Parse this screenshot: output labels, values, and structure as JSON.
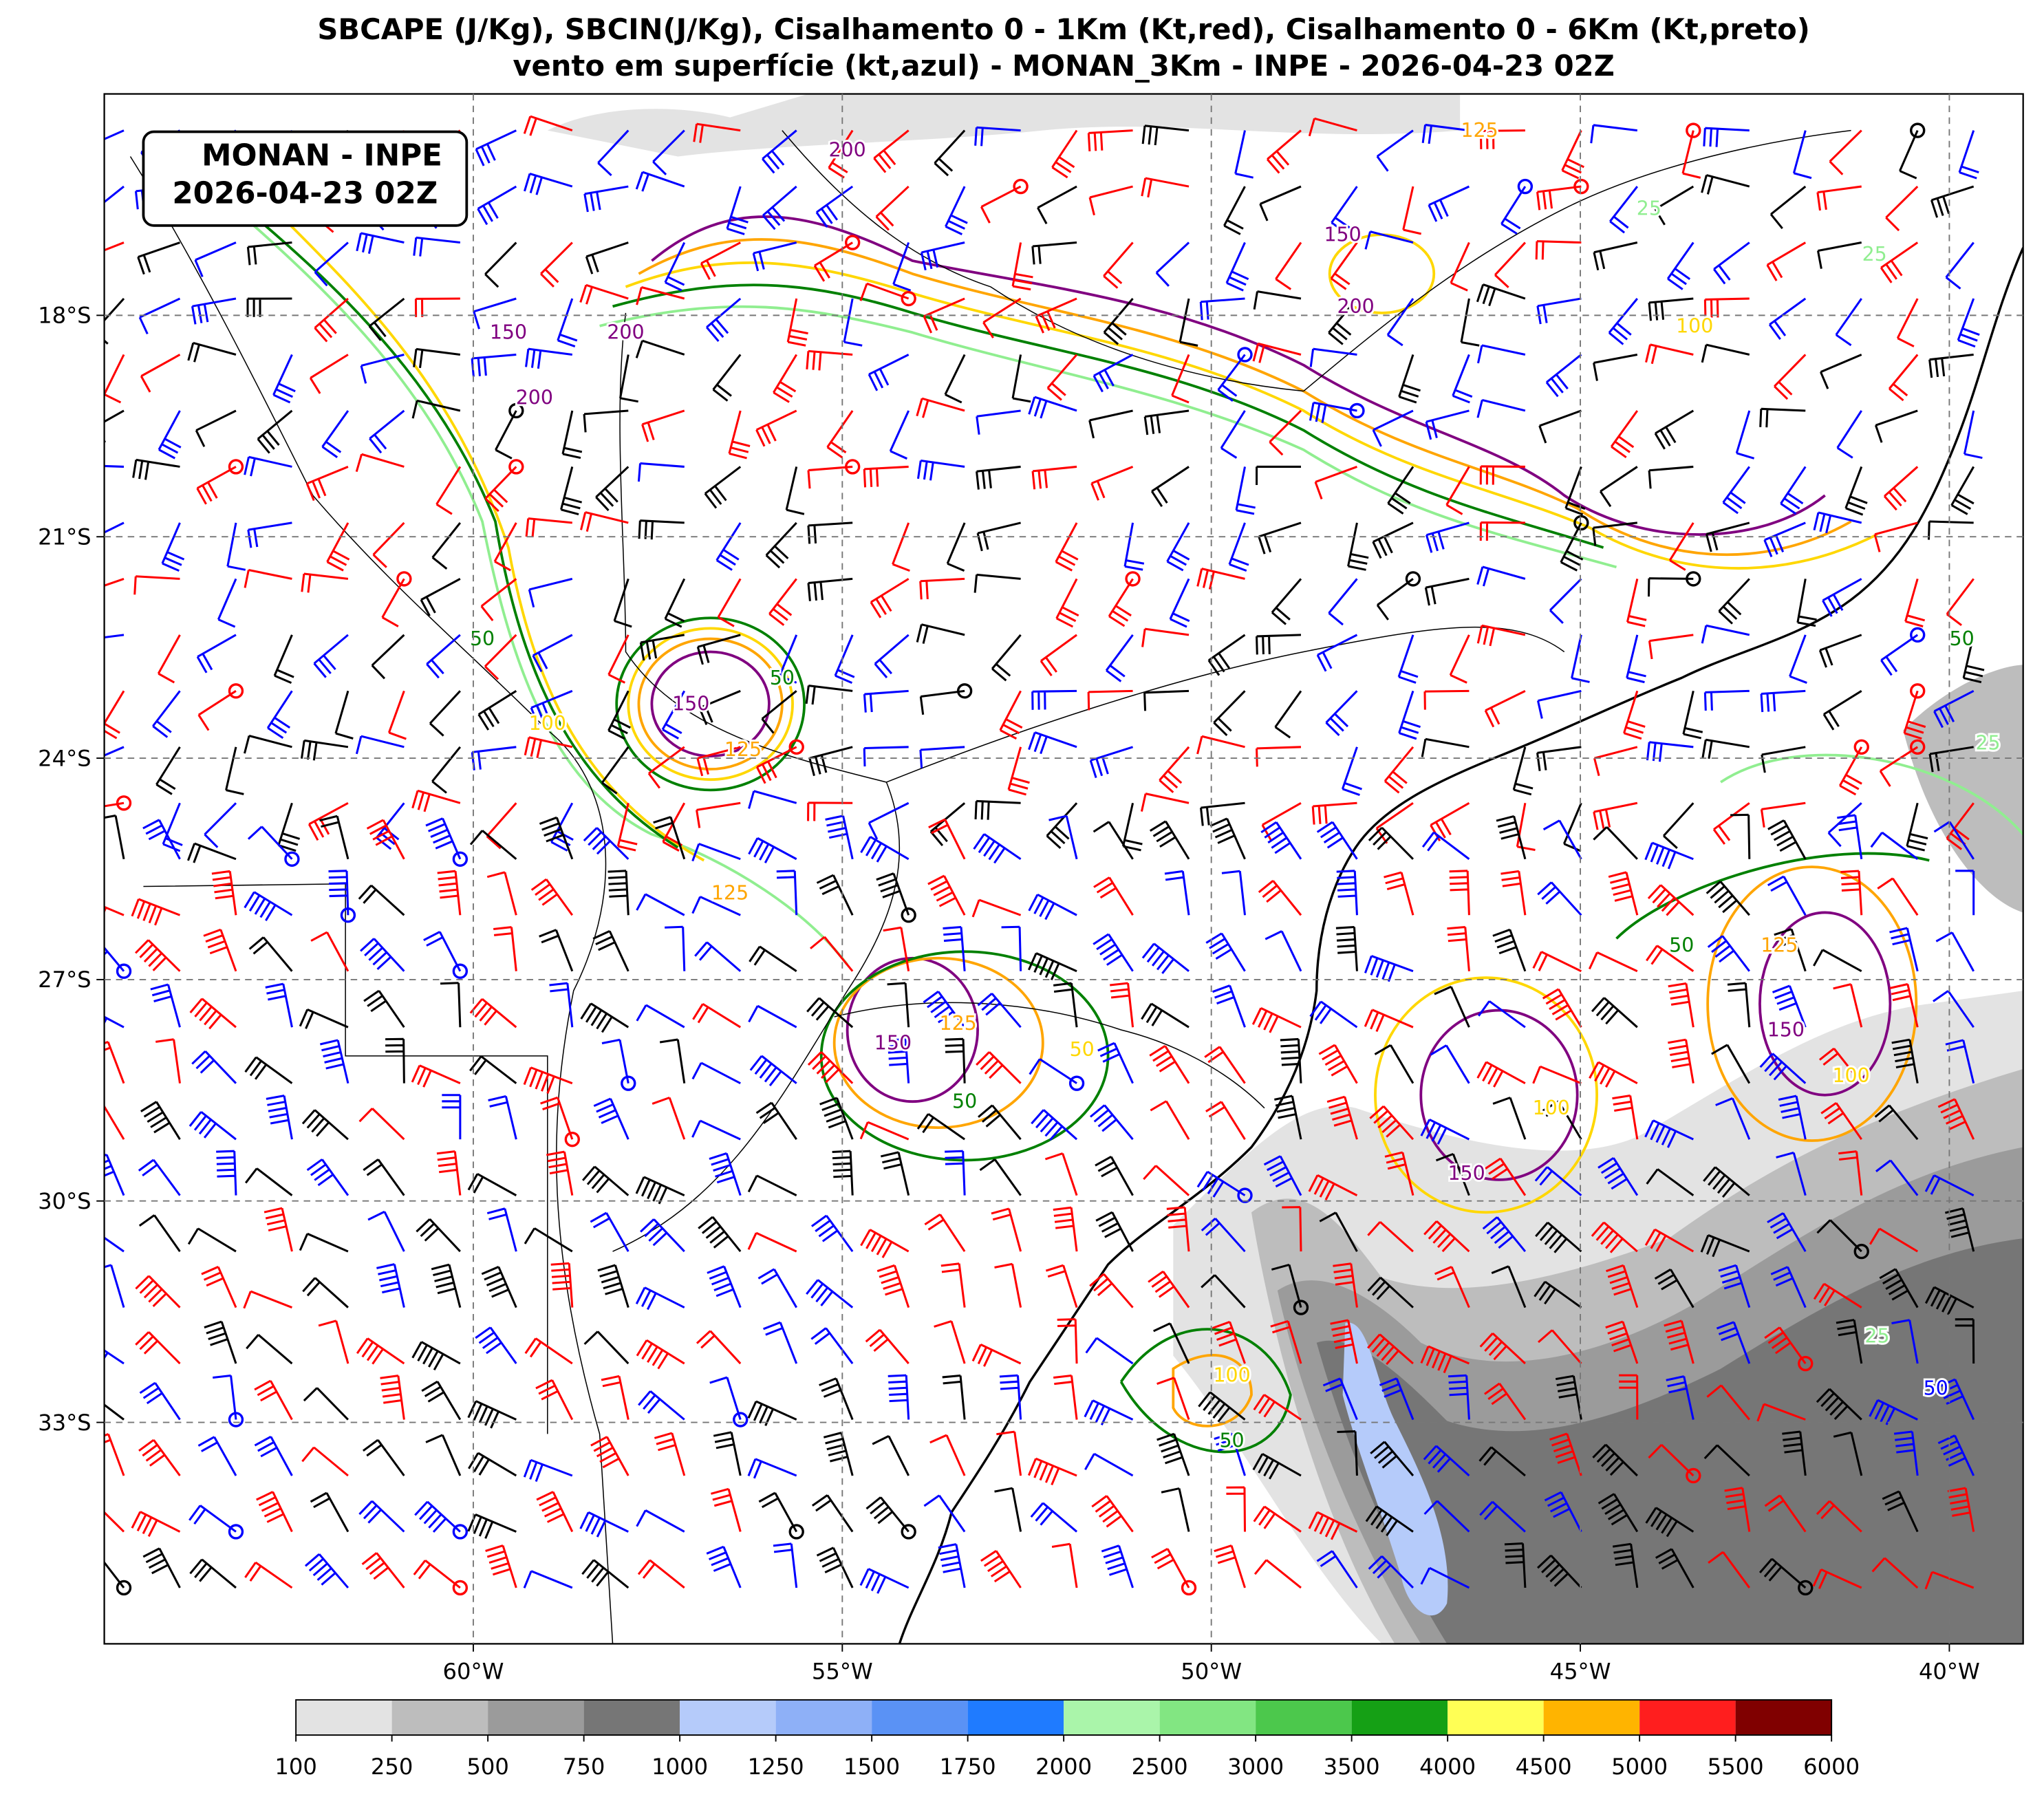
{
  "title_lines": [
    "SBCAPE (J/Kg), SBCIN(J/Kg), Cisalhamento 0 - 1Km (Kt,red), Cisalhamento 0 - 6Km (Kt,preto)",
    "vento em superfície (kt,azul) - MONAN_3Km - INPE - 2026-04-23 02Z"
  ],
  "info_box": [
    "MONAN - INPE",
    "2026-04-23 02Z"
  ],
  "lon_range": [
    -65,
    -39
  ],
  "lat_range": [
    -15,
    -36
  ],
  "lon_ticks": [
    {
      "value": -60,
      "label": "60°W"
    },
    {
      "value": -55,
      "label": "55°W"
    },
    {
      "value": -50,
      "label": "50°W"
    },
    {
      "value": -45,
      "label": "45°W"
    },
    {
      "value": -40,
      "label": "40°W"
    }
  ],
  "lat_ticks": [
    {
      "value": -18,
      "label": "18°S"
    },
    {
      "value": -21,
      "label": "21°S"
    },
    {
      "value": -24,
      "label": "24°S"
    },
    {
      "value": -27,
      "label": "27°S"
    },
    {
      "value": -30,
      "label": "30°S"
    },
    {
      "value": -33,
      "label": "33°S"
    }
  ],
  "colorbar": {
    "levels": [
      100,
      250,
      500,
      750,
      1000,
      1250,
      1500,
      1750,
      2000,
      2500,
      3000,
      3500,
      4000,
      4500,
      5000,
      5500,
      6000
    ],
    "colors": [
      "#e3e3e3",
      "#bdbdbd",
      "#9b9b9b",
      "#767676",
      "#b5cbfa",
      "#8eb0f7",
      "#5a92f5",
      "#1f7bff",
      "#aaf5aa",
      "#82e682",
      "#4cc84c",
      "#15a015",
      "#ffff55",
      "#ffb400",
      "#ff1e1e",
      "#800000"
    ]
  },
  "contour_labels": [
    "200",
    "150",
    "200",
    "150",
    "200",
    "200",
    "125",
    "25",
    "25",
    "100",
    "50",
    "100",
    "50",
    "125",
    "150",
    "125",
    "50",
    "50",
    "150",
    "100",
    "50",
    "25",
    "125",
    "150",
    "100",
    "150",
    "100",
    "125",
    "50",
    "50",
    "25",
    "50"
  ]
}
